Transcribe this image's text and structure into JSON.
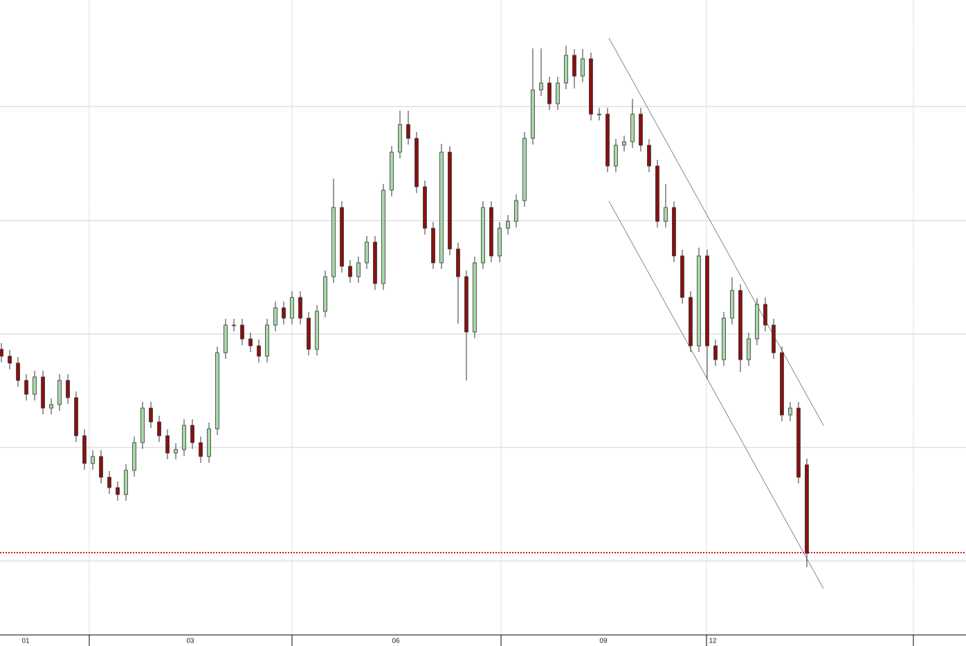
{
  "chart_data": {
    "type": "candlestick",
    "x": [
      0,
      1,
      2,
      3,
      4,
      5,
      6,
      7,
      8,
      9,
      10,
      11,
      12,
      13,
      14,
      15,
      16,
      17,
      18,
      19,
      20,
      21,
      22,
      23,
      24,
      25,
      26,
      27,
      28,
      29,
      30,
      31,
      32,
      33,
      34,
      35,
      36,
      37,
      38,
      39,
      40,
      41,
      42,
      43,
      44,
      45,
      46,
      47,
      48,
      49,
      50,
      51,
      52,
      53,
      54,
      55,
      56,
      57,
      58,
      59,
      60,
      61,
      62,
      63,
      64,
      65,
      66,
      67,
      68,
      69,
      70,
      71,
      72,
      73,
      74,
      75,
      76,
      77,
      78,
      79,
      80,
      81,
      82,
      83,
      84,
      85,
      86,
      87,
      88,
      89,
      90,
      91,
      92,
      93,
      94,
      95,
      96,
      97
    ],
    "open": [
      413,
      403,
      393,
      368,
      348,
      373,
      328,
      333,
      368,
      343,
      288,
      248,
      258,
      228,
      213,
      203,
      238,
      278,
      328,
      308,
      288,
      263,
      268,
      303,
      278,
      258,
      298,
      408,
      448,
      448,
      428,
      418,
      403,
      448,
      473,
      458,
      488,
      458,
      413,
      468,
      518,
      618,
      533,
      518,
      538,
      568,
      508,
      643,
      698,
      738,
      718,
      648,
      588,
      538,
      698,
      558,
      518,
      438,
      538,
      618,
      548,
      588,
      598,
      628,
      718,
      788,
      798,
      768,
      798,
      838,
      808,
      833,
      753,
      753,
      678,
      708,
      713,
      753,
      708,
      678,
      598,
      618,
      548,
      488,
      418,
      548,
      418,
      398,
      458,
      498,
      398,
      428,
      478,
      448,
      408,
      318,
      328,
      246
    ],
    "high": [
      422,
      412,
      402,
      377,
      382,
      382,
      342,
      377,
      377,
      352,
      297,
      267,
      267,
      237,
      222,
      247,
      287,
      337,
      337,
      317,
      297,
      277,
      312,
      312,
      287,
      307,
      417,
      457,
      457,
      457,
      437,
      427,
      457,
      482,
      482,
      497,
      497,
      467,
      477,
      527,
      660,
      627,
      542,
      547,
      577,
      577,
      652,
      707,
      758,
      758,
      727,
      657,
      597,
      710,
      707,
      567,
      527,
      547,
      627,
      627,
      597,
      607,
      637,
      727,
      848,
      848,
      807,
      807,
      852,
      847,
      847,
      842,
      762,
      762,
      717,
      722,
      775,
      762,
      717,
      687,
      652,
      627,
      557,
      497,
      560,
      557,
      427,
      467,
      517,
      507,
      437,
      487,
      488,
      457,
      417,
      337,
      337,
      255
    ],
    "low": [
      394,
      384,
      359,
      339,
      339,
      319,
      319,
      324,
      334,
      279,
      239,
      239,
      219,
      204,
      194,
      194,
      229,
      269,
      299,
      279,
      254,
      254,
      259,
      269,
      249,
      249,
      289,
      399,
      439,
      419,
      409,
      394,
      394,
      439,
      449,
      449,
      449,
      404,
      404,
      459,
      509,
      524,
      509,
      509,
      529,
      499,
      499,
      634,
      689,
      709,
      639,
      579,
      529,
      529,
      549,
      450,
      368,
      429,
      529,
      539,
      539,
      579,
      589,
      619,
      709,
      779,
      759,
      759,
      789,
      790,
      799,
      744,
      744,
      669,
      669,
      699,
      704,
      699,
      669,
      589,
      589,
      539,
      479,
      409,
      409,
      370,
      389,
      389,
      449,
      380,
      389,
      419,
      439,
      399,
      309,
      309,
      219,
      98
    ],
    "close": [
      403,
      393,
      368,
      348,
      373,
      328,
      333,
      368,
      343,
      288,
      248,
      258,
      228,
      213,
      203,
      238,
      278,
      328,
      308,
      288,
      263,
      268,
      303,
      278,
      258,
      298,
      408,
      448,
      448,
      428,
      418,
      403,
      448,
      473,
      458,
      488,
      458,
      413,
      468,
      518,
      618,
      533,
      518,
      538,
      568,
      508,
      643,
      698,
      738,
      718,
      648,
      588,
      538,
      698,
      558,
      518,
      438,
      538,
      618,
      548,
      588,
      598,
      628,
      718,
      788,
      798,
      768,
      798,
      838,
      808,
      833,
      753,
      753,
      678,
      708,
      713,
      753,
      708,
      678,
      598,
      618,
      548,
      488,
      418,
      548,
      418,
      398,
      458,
      498,
      398,
      428,
      478,
      448,
      408,
      318,
      328,
      228,
      118
    ],
    "up_color": "#a8d8a8",
    "down_color": "#8b1010",
    "xlim": [
      -0.17,
      116.17
    ],
    "ylim": [
      0,
      918
    ],
    "xticks": [
      10.58,
      35,
      60.17,
      84.92,
      109.83
    ],
    "xlabels": [
      {
        "value": 2.92,
        "label": "01"
      },
      {
        "value": 22.75,
        "label": "03"
      },
      {
        "value": 47.5,
        "label": "06"
      },
      {
        "value": 72.5,
        "label": "09"
      },
      {
        "value": 85.67,
        "label": "12"
      }
    ],
    "yticks": [
      107,
      271,
      435,
      599,
      764
    ],
    "grid": true,
    "hline": 119,
    "hline_color": "#e0001a",
    "trendlines": [
      {
        "x": [
          73.17,
          99
        ],
        "y": [
          863,
          303
        ]
      },
      {
        "x": [
          73.17,
          99
        ],
        "y": [
          627,
          67
        ]
      }
    ]
  }
}
